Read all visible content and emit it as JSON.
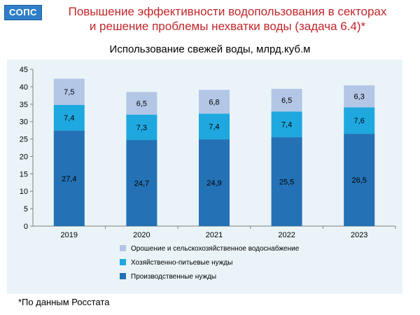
{
  "logo": {
    "text": "СОПС"
  },
  "slide": {
    "title_line1": "Повышение эффективности водопользования в секторах",
    "title_line2": "и решение проблемы нехватки воды (задача 6.4)*",
    "footnote": "*По данным Росстата"
  },
  "colors": {
    "title": "#c0262b",
    "panel_bg": "#eaf4f8",
    "series_industrial": "#2471b5",
    "series_drinking": "#1fa8e0",
    "series_irrigation": "#b3c6e6"
  },
  "chart_data": {
    "type": "bar",
    "stacked": true,
    "title": "Использование свежей воды, млрд.куб.м",
    "categories": [
      "2019",
      "2020",
      "2021",
      "2022",
      "2023"
    ],
    "ylim": [
      0,
      45
    ],
    "yticks": [
      0,
      5,
      10,
      15,
      20,
      25,
      30,
      35,
      40,
      45
    ],
    "grid": false,
    "legend_position": "bottom",
    "series": [
      {
        "name": "Производственные нужды",
        "values": [
          27.4,
          24.7,
          24.9,
          25.5,
          26.5
        ],
        "labels": [
          "27,4",
          "24,7",
          "24,9",
          "25,5",
          "26,5"
        ],
        "color": "#2471b5"
      },
      {
        "name": "Хозяйственно-питьевые нужды",
        "values": [
          7.4,
          7.3,
          7.4,
          7.4,
          7.6
        ],
        "labels": [
          "7,4",
          "7,3",
          "7,4",
          "7,4",
          "7,6"
        ],
        "color": "#1fa8e0"
      },
      {
        "name": "Орошение и сельскохозяйственное водоснабжение",
        "values": [
          7.5,
          6.5,
          6.8,
          6.5,
          6.3
        ],
        "labels": [
          "7,5",
          "6,5",
          "6,8",
          "6,5",
          "6,3"
        ],
        "color": "#b3c6e6"
      }
    ]
  }
}
